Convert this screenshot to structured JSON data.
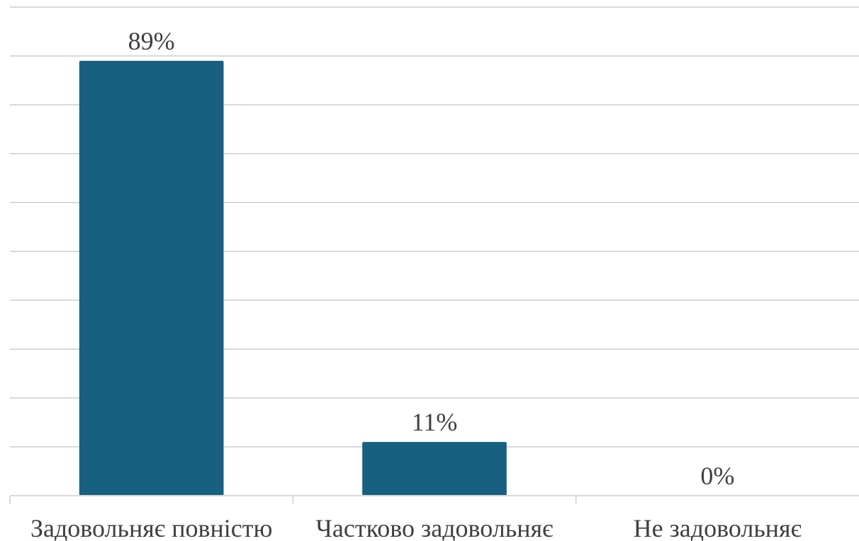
{
  "chart_data": {
    "type": "bar",
    "categories": [
      "Задовольняє повністю",
      "Частково задовольняє",
      "Не задовольняє"
    ],
    "values": [
      89,
      11,
      0
    ],
    "data_labels": [
      "89%",
      "11%",
      "0%"
    ],
    "ylim": [
      0,
      100
    ],
    "grid": true,
    "legend": "none",
    "bar_color": "#17607f"
  }
}
